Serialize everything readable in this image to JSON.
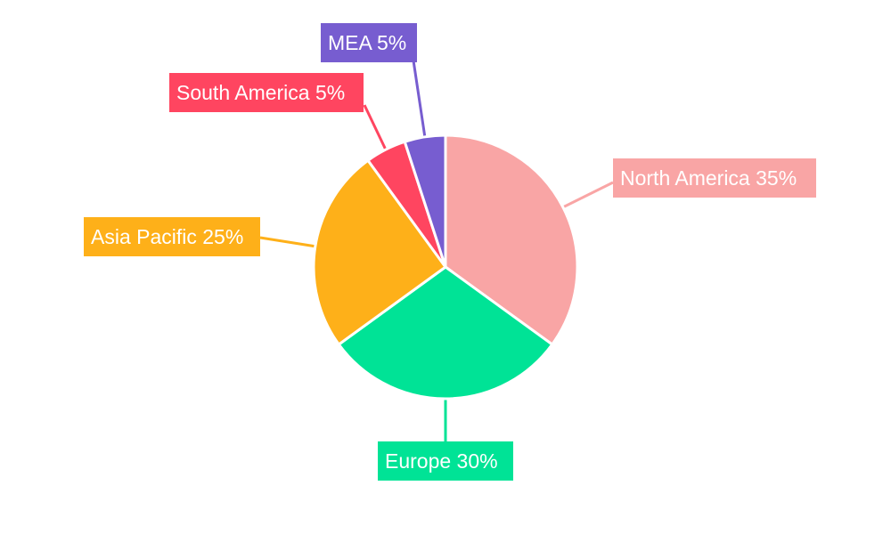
{
  "chart_data": {
    "type": "pie",
    "title": "",
    "start_angle": "12 o'clock, clockwise",
    "slices": [
      {
        "name": "North America",
        "value": 35,
        "label": "North America 35%",
        "color": "#F9A5A5"
      },
      {
        "name": "Europe",
        "value": 30,
        "label": "Europe 30%",
        "color": "#00E396"
      },
      {
        "name": "Asia Pacific",
        "value": 25,
        "label": "Asia Pacific 25%",
        "color": "#FEB019"
      },
      {
        "name": "South America",
        "value": 5,
        "label": "South America 5%",
        "color": "#FF4560"
      },
      {
        "name": "MEA",
        "value": 5,
        "label": "MEA 5%",
        "color": "#775DD0"
      }
    ],
    "legend": "none (callout labels)"
  }
}
